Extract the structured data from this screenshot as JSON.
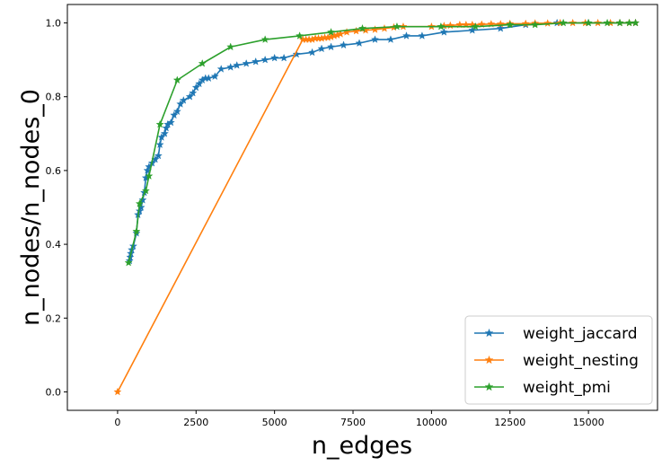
{
  "chart_data": {
    "type": "line",
    "xlabel": "n_edges",
    "ylabel": "n_nodes/n_nodes_0",
    "xlim": [
      -1600,
      17200
    ],
    "ylim": [
      -0.05,
      1.05
    ],
    "x_ticks": [
      0,
      2500,
      5000,
      7500,
      10000,
      12500,
      15000
    ],
    "y_ticks": [
      0.0,
      0.2,
      0.4,
      0.6,
      0.8,
      1.0
    ],
    "x_tick_labels": [
      "0",
      "2500",
      "5000",
      "7500",
      "10000",
      "12500",
      "15000"
    ],
    "y_tick_labels": [
      "0.0",
      "0.2",
      "0.4",
      "0.6",
      "0.8",
      "1.0"
    ],
    "grid": false,
    "legend_position": "lower-right",
    "series": [
      {
        "name": "weight_jaccard",
        "color": "#1f77b4",
        "marker": "star",
        "points": [
          [
            380,
            0.355
          ],
          [
            400,
            0.365
          ],
          [
            420,
            0.375
          ],
          [
            450,
            0.385
          ],
          [
            500,
            0.395
          ],
          [
            600,
            0.43
          ],
          [
            650,
            0.48
          ],
          [
            700,
            0.49
          ],
          [
            750,
            0.5
          ],
          [
            800,
            0.52
          ],
          [
            850,
            0.54
          ],
          [
            900,
            0.58
          ],
          [
            950,
            0.6
          ],
          [
            1000,
            0.61
          ],
          [
            1100,
            0.62
          ],
          [
            1200,
            0.63
          ],
          [
            1300,
            0.64
          ],
          [
            1350,
            0.67
          ],
          [
            1400,
            0.69
          ],
          [
            1500,
            0.7
          ],
          [
            1550,
            0.715
          ],
          [
            1600,
            0.725
          ],
          [
            1700,
            0.73
          ],
          [
            1800,
            0.75
          ],
          [
            1900,
            0.76
          ],
          [
            2000,
            0.78
          ],
          [
            2100,
            0.79
          ],
          [
            2300,
            0.8
          ],
          [
            2400,
            0.81
          ],
          [
            2500,
            0.825
          ],
          [
            2600,
            0.835
          ],
          [
            2700,
            0.845
          ],
          [
            2800,
            0.85
          ],
          [
            2900,
            0.85
          ],
          [
            3100,
            0.855
          ],
          [
            3300,
            0.875
          ],
          [
            3600,
            0.88
          ],
          [
            3800,
            0.885
          ],
          [
            4100,
            0.89
          ],
          [
            4400,
            0.895
          ],
          [
            4700,
            0.9
          ],
          [
            5000,
            0.905
          ],
          [
            5300,
            0.905
          ],
          [
            5700,
            0.915
          ],
          [
            6200,
            0.92
          ],
          [
            6500,
            0.93
          ],
          [
            6800,
            0.935
          ],
          [
            7200,
            0.94
          ],
          [
            7700,
            0.945
          ],
          [
            8200,
            0.955
          ],
          [
            8700,
            0.955
          ],
          [
            9200,
            0.965
          ],
          [
            9700,
            0.965
          ],
          [
            10400,
            0.975
          ],
          [
            11300,
            0.98
          ],
          [
            12200,
            0.985
          ],
          [
            13000,
            0.995
          ],
          [
            14000,
            1.0
          ],
          [
            15000,
            1.0
          ],
          [
            16000,
            1.0
          ],
          [
            16500,
            1.0
          ]
        ]
      },
      {
        "name": "weight_nesting",
        "color": "#ff7f0e",
        "marker": "star",
        "points": [
          [
            0,
            0.0
          ],
          [
            5900,
            0.955
          ],
          [
            6000,
            0.955
          ],
          [
            6100,
            0.955
          ],
          [
            6200,
            0.955
          ],
          [
            6300,
            0.958
          ],
          [
            6400,
            0.958
          ],
          [
            6500,
            0.958
          ],
          [
            6600,
            0.96
          ],
          [
            6700,
            0.96
          ],
          [
            6800,
            0.962
          ],
          [
            6900,
            0.965
          ],
          [
            7000,
            0.967
          ],
          [
            7100,
            0.97
          ],
          [
            7300,
            0.975
          ],
          [
            7600,
            0.978
          ],
          [
            7900,
            0.98
          ],
          [
            8200,
            0.982
          ],
          [
            8500,
            0.985
          ],
          [
            8800,
            0.988
          ],
          [
            9100,
            0.99
          ],
          [
            10000,
            0.99
          ],
          [
            10400,
            0.992
          ],
          [
            10600,
            0.993
          ],
          [
            10900,
            0.995
          ],
          [
            11100,
            0.995
          ],
          [
            11300,
            0.995
          ],
          [
            11600,
            0.996
          ],
          [
            11900,
            0.997
          ],
          [
            12200,
            0.997
          ],
          [
            12500,
            0.998
          ],
          [
            13000,
            0.998
          ],
          [
            13300,
            0.999
          ],
          [
            13700,
            0.999
          ],
          [
            14100,
            1.0
          ],
          [
            14500,
            1.0
          ],
          [
            14900,
            1.0
          ],
          [
            15300,
            1.0
          ],
          [
            15700,
            1.0
          ],
          [
            16000,
            1.0
          ],
          [
            16300,
            1.0
          ],
          [
            16500,
            1.0
          ]
        ]
      },
      {
        "name": "weight_pmi",
        "color": "#2ca02c",
        "marker": "star",
        "points": [
          [
            350,
            0.35
          ],
          [
            600,
            0.435
          ],
          [
            700,
            0.51
          ],
          [
            900,
            0.545
          ],
          [
            1000,
            0.585
          ],
          [
            1350,
            0.725
          ],
          [
            1900,
            0.845
          ],
          [
            2700,
            0.89
          ],
          [
            3600,
            0.935
          ],
          [
            4700,
            0.955
          ],
          [
            5800,
            0.965
          ],
          [
            6800,
            0.975
          ],
          [
            7800,
            0.985
          ],
          [
            8900,
            0.99
          ],
          [
            10300,
            0.99
          ],
          [
            11400,
            0.99
          ],
          [
            12500,
            0.995
          ],
          [
            13300,
            0.995
          ],
          [
            14200,
            1.0
          ],
          [
            15000,
            1.0
          ],
          [
            15600,
            1.0
          ],
          [
            16000,
            1.0
          ],
          [
            16300,
            1.0
          ],
          [
            16500,
            1.0
          ]
        ]
      }
    ]
  }
}
